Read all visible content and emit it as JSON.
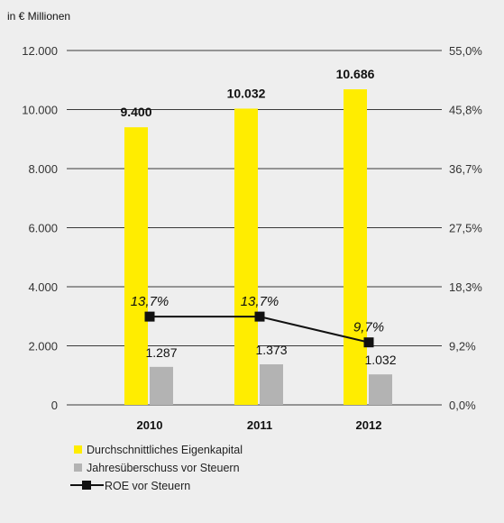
{
  "unit_label": "in € Millionen",
  "chart_data": {
    "type": "bar",
    "categories": [
      "2010",
      "2011",
      "2012"
    ],
    "series": [
      {
        "name": "Durchschnittliches Eigenkapital",
        "values": [
          9400,
          10032,
          10686
        ],
        "labels": [
          "9.400",
          "10.032",
          "10.686"
        ],
        "color": "#ffed00",
        "axis": "left"
      },
      {
        "name": "Jahresüberschuss vor Steuern",
        "values": [
          1287,
          1373,
          1032
        ],
        "labels": [
          "1.287",
          "1.373",
          "1.032"
        ],
        "color": "#b3b3b3",
        "axis": "left"
      },
      {
        "name": "ROE vor Steuern",
        "type": "line",
        "values": [
          13.7,
          13.7,
          9.7
        ],
        "labels": [
          "13,7%",
          "13,7%",
          "9,7%"
        ],
        "color": "#111111",
        "axis": "right"
      }
    ],
    "y_left": {
      "min": 0,
      "max": 12000,
      "ticks": [
        0,
        2000,
        4000,
        6000,
        8000,
        10000,
        12000
      ],
      "tick_labels": [
        "0",
        "2.000",
        "4.000",
        "6.000",
        "8.000",
        "10.000",
        "12.000"
      ]
    },
    "y_right": {
      "min": 0,
      "max": 55.0,
      "tick_labels": [
        "0,0%",
        "9,2%",
        "18,3%",
        "27,5%",
        "36,7%",
        "45,8%",
        "55,0%"
      ]
    },
    "grid": true,
    "legend_position": "bottom-left"
  }
}
